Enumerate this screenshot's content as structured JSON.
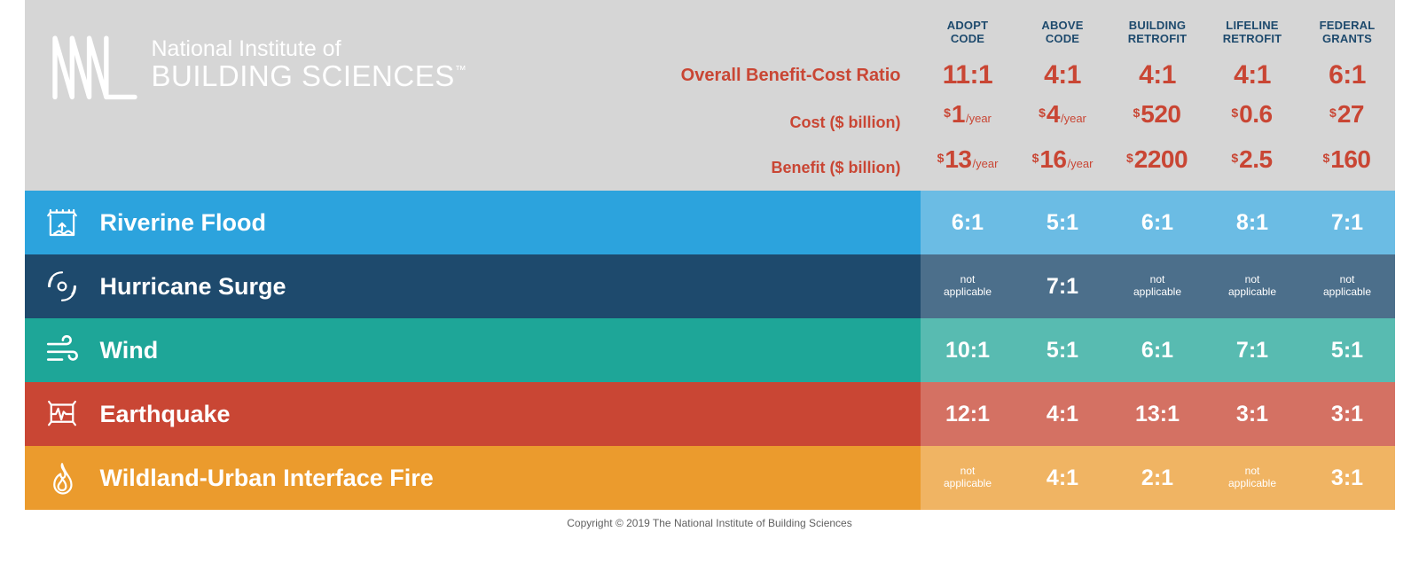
{
  "org": {
    "top": "National Institute of",
    "bottom": "BUILDING SCIENCES",
    "tm": "™"
  },
  "columns": [
    {
      "l1": "ADOPT",
      "l2": "CODE"
    },
    {
      "l1": "ABOVE",
      "l2": "CODE"
    },
    {
      "l1": "BUILDING",
      "l2": "RETROFIT"
    },
    {
      "l1": "LIFELINE",
      "l2": "RETROFIT"
    },
    {
      "l1": "FEDERAL",
      "l2": "GRANTS"
    }
  ],
  "summary": {
    "ratio": {
      "label": "Overall Benefit-Cost Ratio",
      "values": [
        "11:1",
        "4:1",
        "4:1",
        "4:1",
        "6:1"
      ]
    },
    "cost": {
      "label": "Cost ($ billion)",
      "values": [
        {
          "num": "1",
          "per": "/year"
        },
        {
          "num": "4",
          "per": "/year"
        },
        {
          "num": "520",
          "per": ""
        },
        {
          "num": "0.6",
          "per": ""
        },
        {
          "num": "27",
          "per": ""
        }
      ]
    },
    "benefit": {
      "label": "Benefit ($ billion)",
      "values": [
        {
          "num": "13",
          "per": "/year"
        },
        {
          "num": "16",
          "per": "/year"
        },
        {
          "num": "2200",
          "per": ""
        },
        {
          "num": "2.5",
          "per": ""
        },
        {
          "num": "160",
          "per": ""
        }
      ]
    }
  },
  "hazards": [
    {
      "name": "Riverine Flood",
      "icon": "flood",
      "row_color": "#2ca3dd",
      "cell_color": "#6bbce4",
      "values": [
        "6:1",
        "5:1",
        "6:1",
        "8:1",
        "7:1"
      ]
    },
    {
      "name": "Hurricane Surge",
      "icon": "hurricane",
      "row_color": "#1e4a6d",
      "cell_color": "#4c6f8b",
      "values": [
        "not applicable",
        "7:1",
        "not applicable",
        "not applicable",
        "not applicable"
      ]
    },
    {
      "name": "Wind",
      "icon": "wind",
      "row_color": "#1ea698",
      "cell_color": "#58bbb1",
      "values": [
        "10:1",
        "5:1",
        "6:1",
        "7:1",
        "5:1"
      ]
    },
    {
      "name": "Earthquake",
      "icon": "earthquake",
      "row_color": "#c94634",
      "cell_color": "#d47163",
      "values": [
        "12:1",
        "4:1",
        "13:1",
        "3:1",
        "3:1"
      ]
    },
    {
      "name": "Wildland-Urban Interface Fire",
      "icon": "fire",
      "row_color": "#eb9b2d",
      "cell_color": "#f0b463",
      "values": [
        "not applicable",
        "4:1",
        "2:1",
        "not applicable",
        "3:1"
      ]
    }
  ],
  "na_text": "not applicable",
  "copyright": "Copyright © 2019 The National Institute of Building Sciences",
  "colors": {
    "header_bg": "#d6d6d6",
    "accent": "#c94634",
    "colhdr": "#1e4a6d",
    "white": "#ffffff"
  }
}
